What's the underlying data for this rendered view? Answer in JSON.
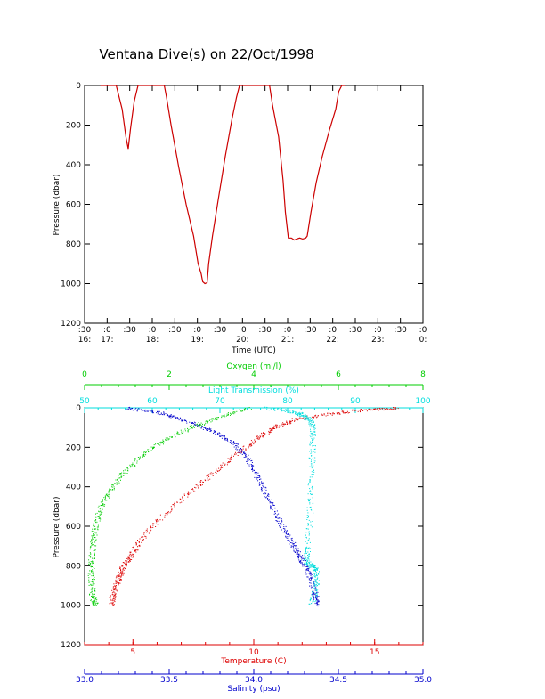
{
  "title": "Ventana Dive(s) on 22/Oct/1998",
  "colors": {
    "axis": "#000000",
    "dive_track": "#cc0000",
    "temperature": "#dd0000",
    "salinity": "#0000cc",
    "oxygen": "#00cc00",
    "light": "#00dddd"
  },
  "chart_data": [
    {
      "type": "line",
      "title": "Ventana Dive(s) on 22/Oct/1998",
      "xlabel": "Time (UTC)",
      "ylabel": "Pressure (dbar)",
      "x_unit": "minutes after 16:00 UTC",
      "xlim": [
        30,
        480
      ],
      "ylim": [
        1200,
        0
      ],
      "yticks": [
        0,
        200,
        400,
        600,
        800,
        1000,
        1200
      ],
      "xticks": [
        {
          "x": 30,
          "top": ":30",
          "bottom": "16:"
        },
        {
          "x": 60,
          "top": ":0",
          "bottom": "17:"
        },
        {
          "x": 90,
          "top": ":30",
          "bottom": ""
        },
        {
          "x": 120,
          "top": ":0",
          "bottom": "18:"
        },
        {
          "x": 150,
          "top": ":30",
          "bottom": ""
        },
        {
          "x": 180,
          "top": ":0",
          "bottom": "19:"
        },
        {
          "x": 210,
          "top": ":30",
          "bottom": ""
        },
        {
          "x": 240,
          "top": ":0",
          "bottom": "20:"
        },
        {
          "x": 270,
          "top": ":30",
          "bottom": ""
        },
        {
          "x": 300,
          "top": ":0",
          "bottom": "21:"
        },
        {
          "x": 330,
          "top": ":30",
          "bottom": ""
        },
        {
          "x": 360,
          "top": ":0",
          "bottom": "22:"
        },
        {
          "x": 390,
          "top": ":30",
          "bottom": ""
        },
        {
          "x": 420,
          "top": ":0",
          "bottom": "23:"
        },
        {
          "x": 450,
          "top": ":30",
          "bottom": ""
        },
        {
          "x": 480,
          "top": ":0",
          "bottom": "0:"
        }
      ],
      "series": [
        {
          "color": "#cc0000",
          "points": [
            [
              51,
              0
            ],
            [
              62,
              0
            ],
            [
              72,
              0
            ],
            [
              80,
              120
            ],
            [
              85,
              260
            ],
            [
              88,
              320
            ],
            [
              91,
              220
            ],
            [
              96,
              80
            ],
            [
              101,
              0
            ],
            [
              111,
              0
            ],
            [
              124,
              0
            ],
            [
              136,
              0
            ],
            [
              139,
              60
            ],
            [
              145,
              200
            ],
            [
              155,
              410
            ],
            [
              165,
              600
            ],
            [
              175,
              760
            ],
            [
              181,
              900
            ],
            [
              185,
              950
            ],
            [
              187,
              990
            ],
            [
              190,
              1000
            ],
            [
              193,
              995
            ],
            [
              195,
              900
            ],
            [
              200,
              760
            ],
            [
              208,
              570
            ],
            [
              217,
              360
            ],
            [
              226,
              170
            ],
            [
              232,
              60
            ],
            [
              236,
              0
            ],
            [
              250,
              0
            ],
            [
              265,
              0
            ],
            [
              276,
              0
            ],
            [
              280,
              100
            ],
            [
              288,
              260
            ],
            [
              294,
              480
            ],
            [
              297,
              640
            ],
            [
              301,
              770
            ],
            [
              305,
              770
            ],
            [
              309,
              780
            ],
            [
              312,
              775
            ],
            [
              316,
              770
            ],
            [
              320,
              775
            ],
            [
              324,
              770
            ],
            [
              326,
              760
            ],
            [
              331,
              640
            ],
            [
              338,
              490
            ],
            [
              346,
              360
            ],
            [
              356,
              220
            ],
            [
              364,
              120
            ],
            [
              368,
              30
            ],
            [
              372,
              0
            ],
            [
              376,
              0
            ]
          ]
        }
      ]
    },
    {
      "type": "scatter",
      "ylabel": "Pressure (dbar)",
      "ylim": [
        1200,
        0
      ],
      "yticks": [
        0,
        200,
        400,
        600,
        800,
        1000,
        1200
      ],
      "axes": [
        {
          "name": "temperature",
          "label": "Temperature (C)",
          "position": "bottom",
          "min": 3.0,
          "max": 17.0,
          "ticks": [
            5,
            10,
            15
          ],
          "tick_labels": [
            "5",
            "10",
            "15"
          ],
          "color": "#dd0000"
        },
        {
          "name": "salinity",
          "label": "Salinity (psu)",
          "position": "bottom2",
          "min": 33.0,
          "max": 35.0,
          "ticks": [
            33.0,
            33.5,
            34.0,
            34.5,
            35.0
          ],
          "tick_labels": [
            "33.0",
            "33.5",
            "34.0",
            "34.5",
            "35.0"
          ],
          "color": "#0000cc"
        },
        {
          "name": "oxygen",
          "label": "Oxygen (ml/l)",
          "position": "top2",
          "min": 0,
          "max": 8,
          "ticks": [
            0,
            2,
            4,
            6,
            8
          ],
          "tick_labels": [
            "0",
            "2",
            "4",
            "6",
            "8"
          ],
          "color": "#00cc00"
        },
        {
          "name": "light",
          "label": "Light Transmission (%)",
          "position": "top",
          "min": 50,
          "max": 100,
          "ticks": [
            50,
            60,
            70,
            80,
            90,
            100
          ],
          "tick_labels": [
            "50",
            "60",
            "70",
            "80",
            "90",
            "100"
          ],
          "color": "#00dddd"
        }
      ],
      "series": [
        {
          "name": "Temperature (C)",
          "axis": "temperature",
          "color": "#dd0000",
          "points": [
            [
              15.9,
              0
            ],
            [
              14.5,
              10
            ],
            [
              13.0,
              30
            ],
            [
              11.6,
              60
            ],
            [
              10.8,
              100
            ],
            [
              10.2,
              150
            ],
            [
              9.3,
              230
            ],
            [
              8.3,
              330
            ],
            [
              7.2,
              440
            ],
            [
              6.1,
              560
            ],
            [
              5.3,
              670
            ],
            [
              4.9,
              750
            ],
            [
              4.6,
              800
            ],
            [
              4.4,
              860
            ],
            [
              4.2,
              930
            ],
            [
              4.1,
              1000
            ]
          ]
        },
        {
          "name": "Salinity (psu)",
          "axis": "salinity",
          "color": "#0000cc",
          "points": [
            [
              33.25,
              0
            ],
            [
              33.43,
              20
            ],
            [
              33.55,
              50
            ],
            [
              33.68,
              90
            ],
            [
              33.79,
              130
            ],
            [
              33.88,
              180
            ],
            [
              33.96,
              250
            ],
            [
              34.02,
              350
            ],
            [
              34.08,
              450
            ],
            [
              34.14,
              560
            ],
            [
              34.2,
              650
            ],
            [
              34.25,
              720
            ],
            [
              34.29,
              780
            ],
            [
              34.33,
              850
            ],
            [
              34.36,
              940
            ],
            [
              34.38,
              1000
            ]
          ]
        },
        {
          "name": "Oxygen (ml/l)",
          "axis": "oxygen",
          "color": "#00cc00",
          "points": [
            [
              3.9,
              0
            ],
            [
              3.1,
              50
            ],
            [
              2.5,
              100
            ],
            [
              1.9,
              160
            ],
            [
              1.4,
              230
            ],
            [
              0.9,
              330
            ],
            [
              0.55,
              430
            ],
            [
              0.33,
              530
            ],
            [
              0.22,
              640
            ],
            [
              0.16,
              750
            ],
            [
              0.15,
              850
            ],
            [
              0.18,
              950
            ],
            [
              0.25,
              1000
            ]
          ]
        },
        {
          "name": "Light Transmission (%)",
          "axis": "light",
          "color": "#00dddd",
          "points": [
            [
              77.0,
              0
            ],
            [
              81.0,
              20
            ],
            [
              82.5,
              40
            ],
            [
              83.5,
              70
            ],
            [
              83.7,
              150
            ],
            [
              83.5,
              300
            ],
            [
              83.3,
              500
            ],
            [
              83.0,
              700
            ],
            [
              82.7,
              780
            ],
            [
              83.6,
              800
            ],
            [
              84.2,
              820
            ],
            [
              84.2,
              900
            ],
            [
              83.5,
              1000
            ]
          ]
        }
      ]
    }
  ]
}
